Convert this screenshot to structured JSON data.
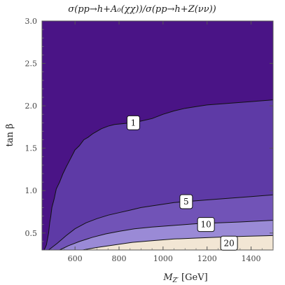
{
  "chart_data": {
    "type": "contour",
    "title": "σ(pp→h+A₀(χχ))/σ(pp→h+Z(νν))",
    "xlabel": "M_{Z'} [GeV]",
    "xlabel_main": "M",
    "xlabel_sub": "Z′",
    "xlabel_unit": " [GeV]",
    "ylabel": "tan β",
    "xlim": [
      450,
      1500
    ],
    "ylim": [
      0.3,
      3.0
    ],
    "x_ticks": [
      600,
      800,
      1000,
      1200,
      1400
    ],
    "x_tick_labels": [
      "600",
      "800",
      "1000",
      "1200",
      "1400"
    ],
    "y_ticks": [
      0.5,
      1.0,
      1.5,
      2.0,
      2.5,
      3.0
    ],
    "y_tick_labels": [
      "0.5",
      "1.0",
      "1.5",
      "2.0",
      "2.5",
      "3.0"
    ],
    "regions": [
      {
        "name": "<1",
        "color": "#4a1486"
      },
      {
        "name": "1-5",
        "color": "#5e3aa6"
      },
      {
        "name": "5-10",
        "color": "#7153b7"
      },
      {
        "name": "10-20",
        "color": "#9a8ad6"
      },
      {
        "name": ">20",
        "color": "#f2e6d4"
      }
    ],
    "contours": [
      {
        "level": "1",
        "label": "1",
        "label_at": [
          865,
          1.8
        ],
        "points": [
          [
            460,
            0.3
          ],
          [
            470,
            0.36
          ],
          [
            480,
            0.5
          ],
          [
            485,
            0.62
          ],
          [
            490,
            0.7
          ],
          [
            495,
            0.8
          ],
          [
            505,
            0.9
          ],
          [
            515,
            1.02
          ],
          [
            530,
            1.1
          ],
          [
            545,
            1.2
          ],
          [
            560,
            1.28
          ],
          [
            580,
            1.38
          ],
          [
            600,
            1.48
          ],
          [
            620,
            1.53
          ],
          [
            640,
            1.6
          ],
          [
            660,
            1.63
          ],
          [
            680,
            1.67
          ],
          [
            700,
            1.7
          ],
          [
            720,
            1.73
          ],
          [
            750,
            1.76
          ],
          [
            780,
            1.78
          ],
          [
            820,
            1.79
          ],
          [
            860,
            1.8
          ],
          [
            900,
            1.82
          ],
          [
            950,
            1.85
          ],
          [
            1000,
            1.9
          ],
          [
            1050,
            1.94
          ],
          [
            1100,
            1.97
          ],
          [
            1150,
            1.99
          ],
          [
            1200,
            2.01
          ],
          [
            1300,
            2.03
          ],
          [
            1400,
            2.05
          ],
          [
            1500,
            2.07
          ]
        ]
      },
      {
        "level": "5",
        "label": "5",
        "label_at": [
          1105,
          0.87
        ],
        "points": [
          [
            480,
            0.3
          ],
          [
            520,
            0.38
          ],
          [
            560,
            0.47
          ],
          [
            600,
            0.55
          ],
          [
            650,
            0.62
          ],
          [
            700,
            0.67
          ],
          [
            750,
            0.71
          ],
          [
            800,
            0.74
          ],
          [
            850,
            0.77
          ],
          [
            900,
            0.8
          ],
          [
            950,
            0.82
          ],
          [
            1000,
            0.84
          ],
          [
            1050,
            0.86
          ],
          [
            1100,
            0.87
          ],
          [
            1200,
            0.89
          ],
          [
            1300,
            0.91
          ],
          [
            1400,
            0.93
          ],
          [
            1500,
            0.95
          ]
        ]
      },
      {
        "level": "10",
        "label": "10",
        "label_at": [
          1195,
          0.6
        ],
        "points": [
          [
            530,
            0.3
          ],
          [
            570,
            0.35
          ],
          [
            620,
            0.4
          ],
          [
            680,
            0.45
          ],
          [
            740,
            0.49
          ],
          [
            800,
            0.52
          ],
          [
            870,
            0.55
          ],
          [
            950,
            0.57
          ],
          [
            1050,
            0.59
          ],
          [
            1150,
            0.61
          ],
          [
            1250,
            0.62
          ],
          [
            1350,
            0.63
          ],
          [
            1500,
            0.65
          ]
        ]
      },
      {
        "level": "20",
        "label": "20",
        "label_at": [
          1300,
          0.38
        ],
        "points": [
          [
            635,
            0.3
          ],
          [
            700,
            0.33
          ],
          [
            780,
            0.36
          ],
          [
            860,
            0.39
          ],
          [
            950,
            0.41
          ],
          [
            1050,
            0.43
          ],
          [
            1150,
            0.44
          ],
          [
            1250,
            0.45
          ],
          [
            1350,
            0.46
          ],
          [
            1500,
            0.47
          ]
        ]
      }
    ],
    "grid": false
  }
}
